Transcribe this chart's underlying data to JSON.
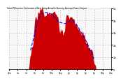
{
  "title": "Solar PV/Inverter Performance West Array Actual & Running Average Power Output",
  "bg_color": "#ffffff",
  "plot_bg_color": "#f8f8f8",
  "grid_color": "#aaaaaa",
  "bar_color": "#cc0000",
  "avg_line_color": "#0000ff",
  "num_points": 288,
  "ylim": [
    0,
    5000
  ],
  "ytick_labels": [
    "0",
    "1k",
    "2k",
    "3k",
    "4k",
    "5k"
  ],
  "ytick_vals": [
    0,
    1000,
    2000,
    3000,
    4000,
    5000
  ],
  "time_labels": [
    "12a",
    "2a",
    "4a",
    "6a",
    "8a",
    "10a",
    "12p",
    "2p",
    "4p",
    "6p",
    "8p",
    "10p",
    "12a"
  ]
}
